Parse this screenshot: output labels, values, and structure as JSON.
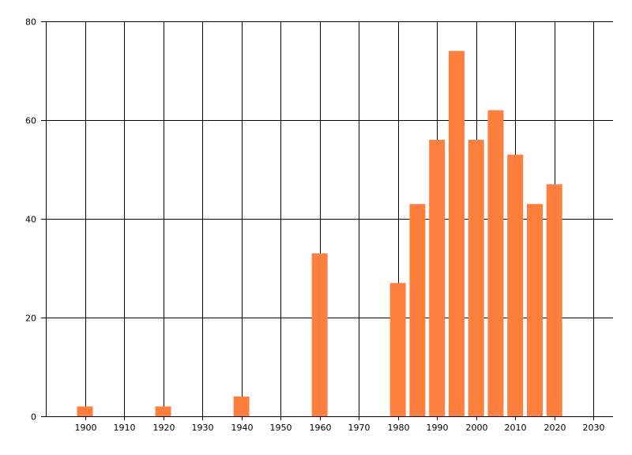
{
  "chart_data": {
    "type": "bar",
    "title": "",
    "xlabel": "",
    "ylabel": "",
    "x": [
      1900,
      1920,
      1940,
      1960,
      1980,
      1985,
      1990,
      1995,
      2000,
      2005,
      2010,
      2015,
      2020
    ],
    "values": [
      2,
      2,
      4,
      33,
      27,
      43,
      56,
      74,
      56,
      62,
      53,
      43,
      47
    ],
    "xlim": [
      1890,
      2035
    ],
    "ylim": [
      0,
      80
    ],
    "x_ticks": [
      1900,
      1910,
      1920,
      1930,
      1940,
      1950,
      1960,
      1970,
      1980,
      1990,
      2000,
      2010,
      2020,
      2030
    ],
    "y_ticks": [
      0,
      20,
      40,
      60,
      80
    ],
    "grid": true,
    "legend": "none",
    "bar_color": "#ff7f3f",
    "grid_color": "#000000"
  }
}
